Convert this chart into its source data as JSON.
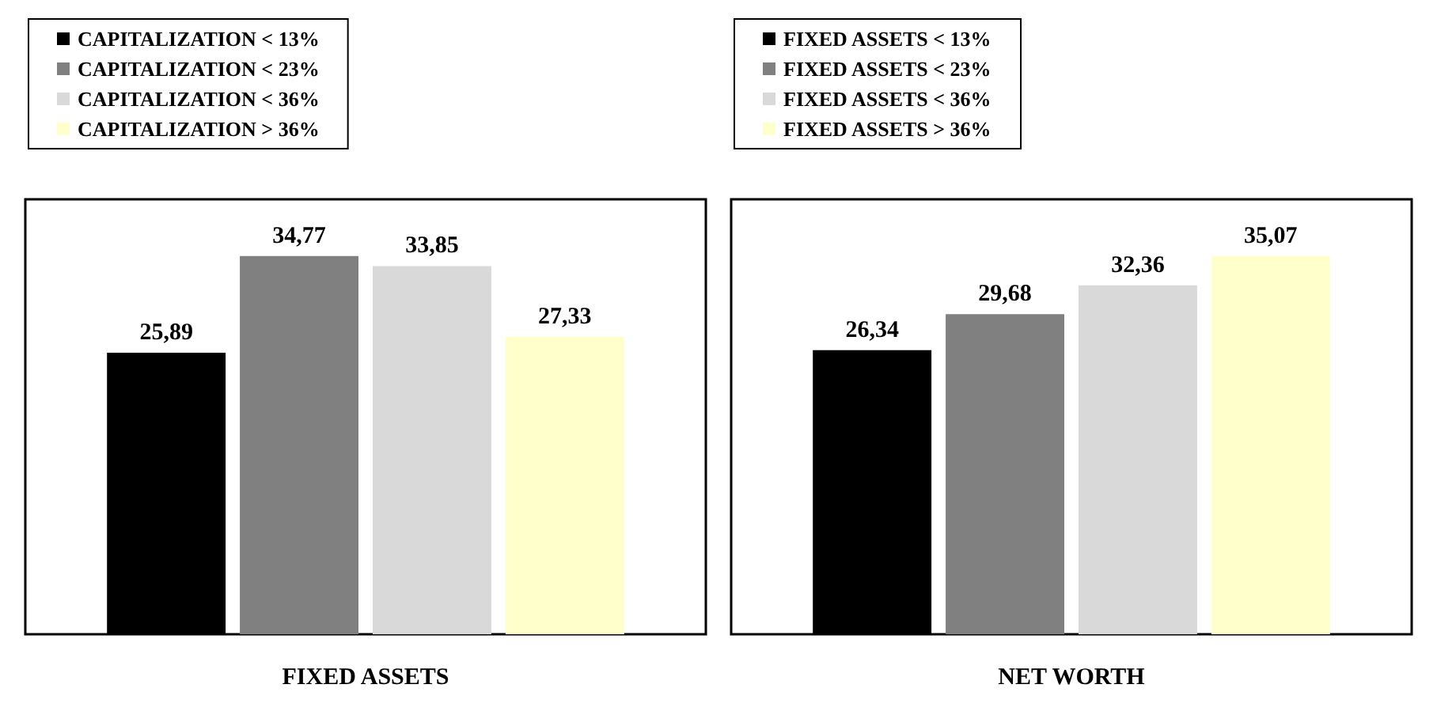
{
  "chart_data": [
    {
      "type": "bar",
      "xlabel": "FIXED ASSETS",
      "categories": [
        null
      ],
      "legend": "top left",
      "tick_labels": false,
      "series": [
        {
          "name": "CAPITALIZATION < 13%",
          "color": "#000000",
          "values": [
            25.89
          ],
          "value_labels": [
            "25,89"
          ]
        },
        {
          "name": "CAPITALIZATION < 23%",
          "color": "#808080",
          "values": [
            34.77
          ],
          "value_labels": [
            "34,77"
          ]
        },
        {
          "name": "CAPITALIZATION < 36%",
          "color": "#d9d9d9",
          "values": [
            33.85
          ],
          "value_labels": [
            "33,85"
          ]
        },
        {
          "name": "CAPITALIZATION > 36%",
          "color": "#ffffcc",
          "values": [
            27.33
          ],
          "value_labels": [
            "27,33"
          ]
        }
      ]
    },
    {
      "type": "bar",
      "xlabel": "NET WORTH",
      "categories": [
        null
      ],
      "legend": "top left",
      "tick_labels": false,
      "series": [
        {
          "name": "FIXED ASSETS < 13%",
          "color": "#000000",
          "values": [
            26.34
          ],
          "value_labels": [
            "26,34"
          ]
        },
        {
          "name": "FIXED ASSETS < 23%",
          "color": "#808080",
          "values": [
            29.68
          ],
          "value_labels": [
            "29,68"
          ]
        },
        {
          "name": "FIXED ASSETS < 36%",
          "color": "#d9d9d9",
          "values": [
            32.36
          ],
          "value_labels": [
            "32,36"
          ]
        },
        {
          "name": "FIXED ASSETS > 36%",
          "color": "#ffffcc",
          "values": [
            35.07
          ],
          "value_labels": [
            "35,07"
          ]
        }
      ]
    }
  ]
}
